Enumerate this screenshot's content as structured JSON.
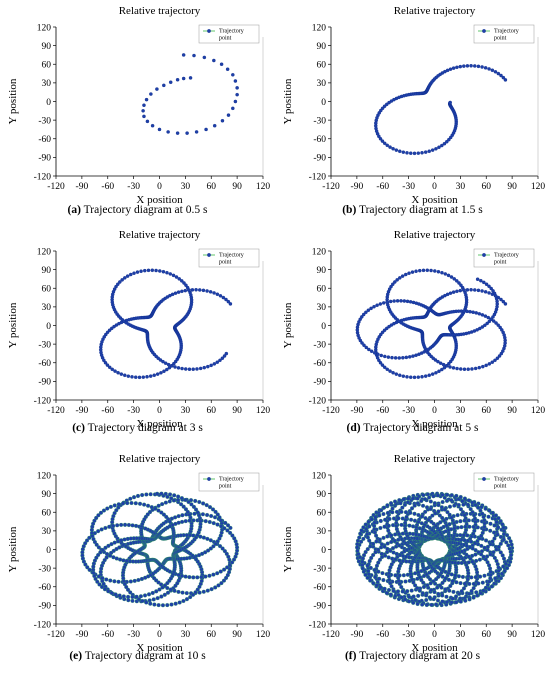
{
  "chart_data": [
    {
      "type": "scatter",
      "panel_label": "(a)",
      "caption": "Trajectory diagram at 0.5 s",
      "title": "Relative trajectory",
      "xlabel": "X position",
      "ylabel": "Y position",
      "xlim": [
        -120,
        120
      ],
      "ylim": [
        -120,
        120
      ],
      "xticks": [
        -120,
        -90,
        -60,
        -30,
        0,
        30,
        60,
        90,
        120
      ],
      "yticks": [
        -120,
        -90,
        -60,
        -30,
        0,
        30,
        60,
        90,
        120
      ],
      "legend": {
        "label": "Trajectory point",
        "position": "top-right"
      },
      "grid": false,
      "series": [
        {
          "name": "Trajectory point",
          "points": [
            [
              28,
              75
            ],
            [
              40,
              74
            ],
            [
              52,
              71
            ],
            [
              63,
              66
            ],
            [
              72,
              60
            ],
            [
              79,
              52
            ],
            [
              85,
              43
            ],
            [
              88,
              33
            ],
            [
              90,
              22
            ],
            [
              90,
              11
            ],
            [
              88,
              0
            ],
            [
              85,
              -11
            ],
            [
              80,
              -22
            ],
            [
              73,
              -31
            ],
            [
              64,
              -39
            ],
            [
              54,
              -45
            ],
            [
              43,
              -49
            ],
            [
              32,
              -51
            ],
            [
              21,
              -51
            ],
            [
              10,
              -49
            ],
            [
              0,
              -45
            ],
            [
              -8,
              -39
            ],
            [
              -14,
              -32
            ],
            [
              -18,
              -24
            ],
            [
              -19,
              -15
            ],
            [
              -18,
              -6
            ],
            [
              -15,
              3
            ],
            [
              -10,
              12
            ],
            [
              -3,
              20
            ],
            [
              5,
              26
            ],
            [
              13,
              31
            ],
            [
              21,
              35
            ],
            [
              28,
              37
            ],
            [
              36,
              38
            ]
          ]
        }
      ],
      "colors": {
        "marker": "#1e3fa8",
        "marker_edge": "#0b2a86",
        "legend_line": "#3ab54a"
      }
    },
    {
      "type": "scatter",
      "panel_label": "(b)",
      "caption": "Trajectory diagram at 1.5 s",
      "title": "Relative trajectory",
      "xlabel": "X position",
      "ylabel": "Y position",
      "xlim": [
        -120,
        120
      ],
      "ylim": [
        -120,
        120
      ],
      "xticks": [
        -120,
        -90,
        -60,
        -30,
        0,
        30,
        60,
        90,
        120
      ],
      "yticks": [
        -120,
        -90,
        -60,
        -30,
        0,
        30,
        60,
        90,
        120
      ],
      "legend": {
        "label": "Trajectory point",
        "position": "top-right"
      },
      "grid": false,
      "series": [
        {
          "name": "Trajectory point",
          "model": {
            "outer_radius": 90,
            "inner_radius": 18,
            "turns": 1.5,
            "points": 120
          }
        }
      ],
      "colors": {
        "marker": "#1e3fa8",
        "marker_edge": "#0b2a86",
        "legend_line": "#3ab54a"
      }
    },
    {
      "type": "scatter",
      "panel_label": "(c)",
      "caption": "Trajectory diagram at 3 s",
      "title": "Relative trajectory",
      "xlabel": "X position",
      "ylabel": "Y position",
      "xlim": [
        -120,
        120
      ],
      "ylim": [
        -120,
        120
      ],
      "xticks": [
        -120,
        -90,
        -60,
        -30,
        0,
        30,
        60,
        90,
        120
      ],
      "yticks": [
        -120,
        -90,
        -60,
        -30,
        0,
        30,
        60,
        90,
        120
      ],
      "legend": {
        "label": "Trajectory point",
        "position": "top-right"
      },
      "grid": false,
      "series": [
        {
          "name": "Trajectory point",
          "model": {
            "outer_radius": 90,
            "inner_radius": 18,
            "turns": 3,
            "points": 240
          }
        }
      ],
      "colors": {
        "marker": "#1e3fa8",
        "marker_edge": "#0b2a86",
        "legend_line": "#3ab54a"
      }
    },
    {
      "type": "scatter",
      "panel_label": "(d)",
      "caption": "Trajectory diagram at 5 s",
      "title": "Relative trajectory",
      "xlabel": "X position",
      "ylabel": "Y position",
      "xlim": [
        -120,
        120
      ],
      "ylim": [
        -120,
        120
      ],
      "xticks": [
        -120,
        -90,
        -60,
        -30,
        0,
        30,
        60,
        90,
        120
      ],
      "yticks": [
        -120,
        -90,
        -60,
        -30,
        0,
        30,
        60,
        90,
        120
      ],
      "legend": {
        "label": "Trajectory point",
        "position": "top-right"
      },
      "grid": false,
      "series": [
        {
          "name": "Trajectory point",
          "model": {
            "outer_radius": 90,
            "inner_radius": 18,
            "turns": 5,
            "points": 400
          }
        }
      ],
      "colors": {
        "marker": "#1e3fa8",
        "marker_edge": "#0b2a86",
        "legend_line": "#3ab54a"
      }
    },
    {
      "type": "scatter",
      "panel_label": "(e)",
      "caption": "Trajectory diagram at 10 s",
      "title": "Relative trajectory",
      "xlabel": "X position",
      "ylabel": "Y position",
      "xlim": [
        -120,
        120
      ],
      "ylim": [
        -120,
        120
      ],
      "xticks": [
        -120,
        -90,
        -60,
        -30,
        0,
        30,
        60,
        90,
        120
      ],
      "yticks": [
        -120,
        -90,
        -60,
        -30,
        0,
        30,
        60,
        90,
        120
      ],
      "legend": {
        "label": "Trajectory point",
        "position": "top-right"
      },
      "grid": false,
      "series": [
        {
          "name": "Trajectory point",
          "model": {
            "outer_radius": 90,
            "inner_radius": 18,
            "turns": 10,
            "points": 700
          }
        }
      ],
      "colors": {
        "marker": "#1e3fa8",
        "marker_edge": "#0b2a86",
        "legend_line": "#3ab54a"
      }
    },
    {
      "type": "scatter",
      "panel_label": "(f)",
      "caption": "Trajectory diagram at 20 s",
      "title": "Relative trajectory",
      "xlabel": "X position",
      "ylabel": "Y position",
      "xlim": [
        -120,
        120
      ],
      "ylim": [
        -120,
        120
      ],
      "xticks": [
        -120,
        -90,
        -60,
        -30,
        0,
        30,
        60,
        90,
        120
      ],
      "yticks": [
        -120,
        -90,
        -60,
        -30,
        0,
        30,
        60,
        90,
        120
      ],
      "legend": {
        "label": "Trajectory point",
        "position": "top-right"
      },
      "grid": false,
      "series": [
        {
          "name": "Trajectory point",
          "model": {
            "outer_radius": 90,
            "inner_radius": 18,
            "turns": 20,
            "points": 1300
          }
        }
      ],
      "colors": {
        "marker": "#1e3fa8",
        "marker_edge": "#0b2a86",
        "legend_line": "#3ab54a"
      }
    }
  ]
}
